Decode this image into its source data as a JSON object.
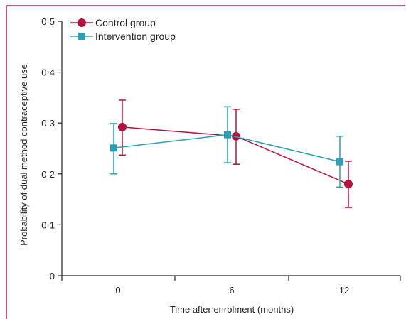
{
  "colors": {
    "frame": "#c2185b",
    "axis": "#222222",
    "control": "#b5123f",
    "intervention": "#2a9fb5"
  },
  "legend": {
    "control_label": "Control group",
    "intervention_label": "Intervention group"
  },
  "chart_data": {
    "type": "line",
    "title": "",
    "xlabel": "Time after enrolment (months)",
    "ylabel": "Probability of dual method contraceptive use",
    "categories": [
      "0",
      "6",
      "12"
    ],
    "ylim": [
      0,
      0.5
    ],
    "yticks": [
      0,
      0.1,
      0.2,
      0.3,
      0.4,
      0.5
    ],
    "ytick_labels": [
      "0",
      "0·1",
      "0·2",
      "0·3",
      "0·4",
      "0·5"
    ],
    "grid": false,
    "legend_position": "top-left",
    "series": [
      {
        "name": "Control group",
        "key": "control",
        "marker": "circle",
        "values": [
          0.292,
          0.274,
          0.18
        ],
        "lower": [
          0.237,
          0.219,
          0.134
        ],
        "upper": [
          0.345,
          0.327,
          0.225
        ]
      },
      {
        "name": "Intervention group",
        "key": "intervention",
        "marker": "square",
        "values": [
          0.251,
          0.277,
          0.224
        ],
        "lower": [
          0.2,
          0.222,
          0.174
        ],
        "upper": [
          0.299,
          0.332,
          0.274
        ]
      }
    ]
  }
}
